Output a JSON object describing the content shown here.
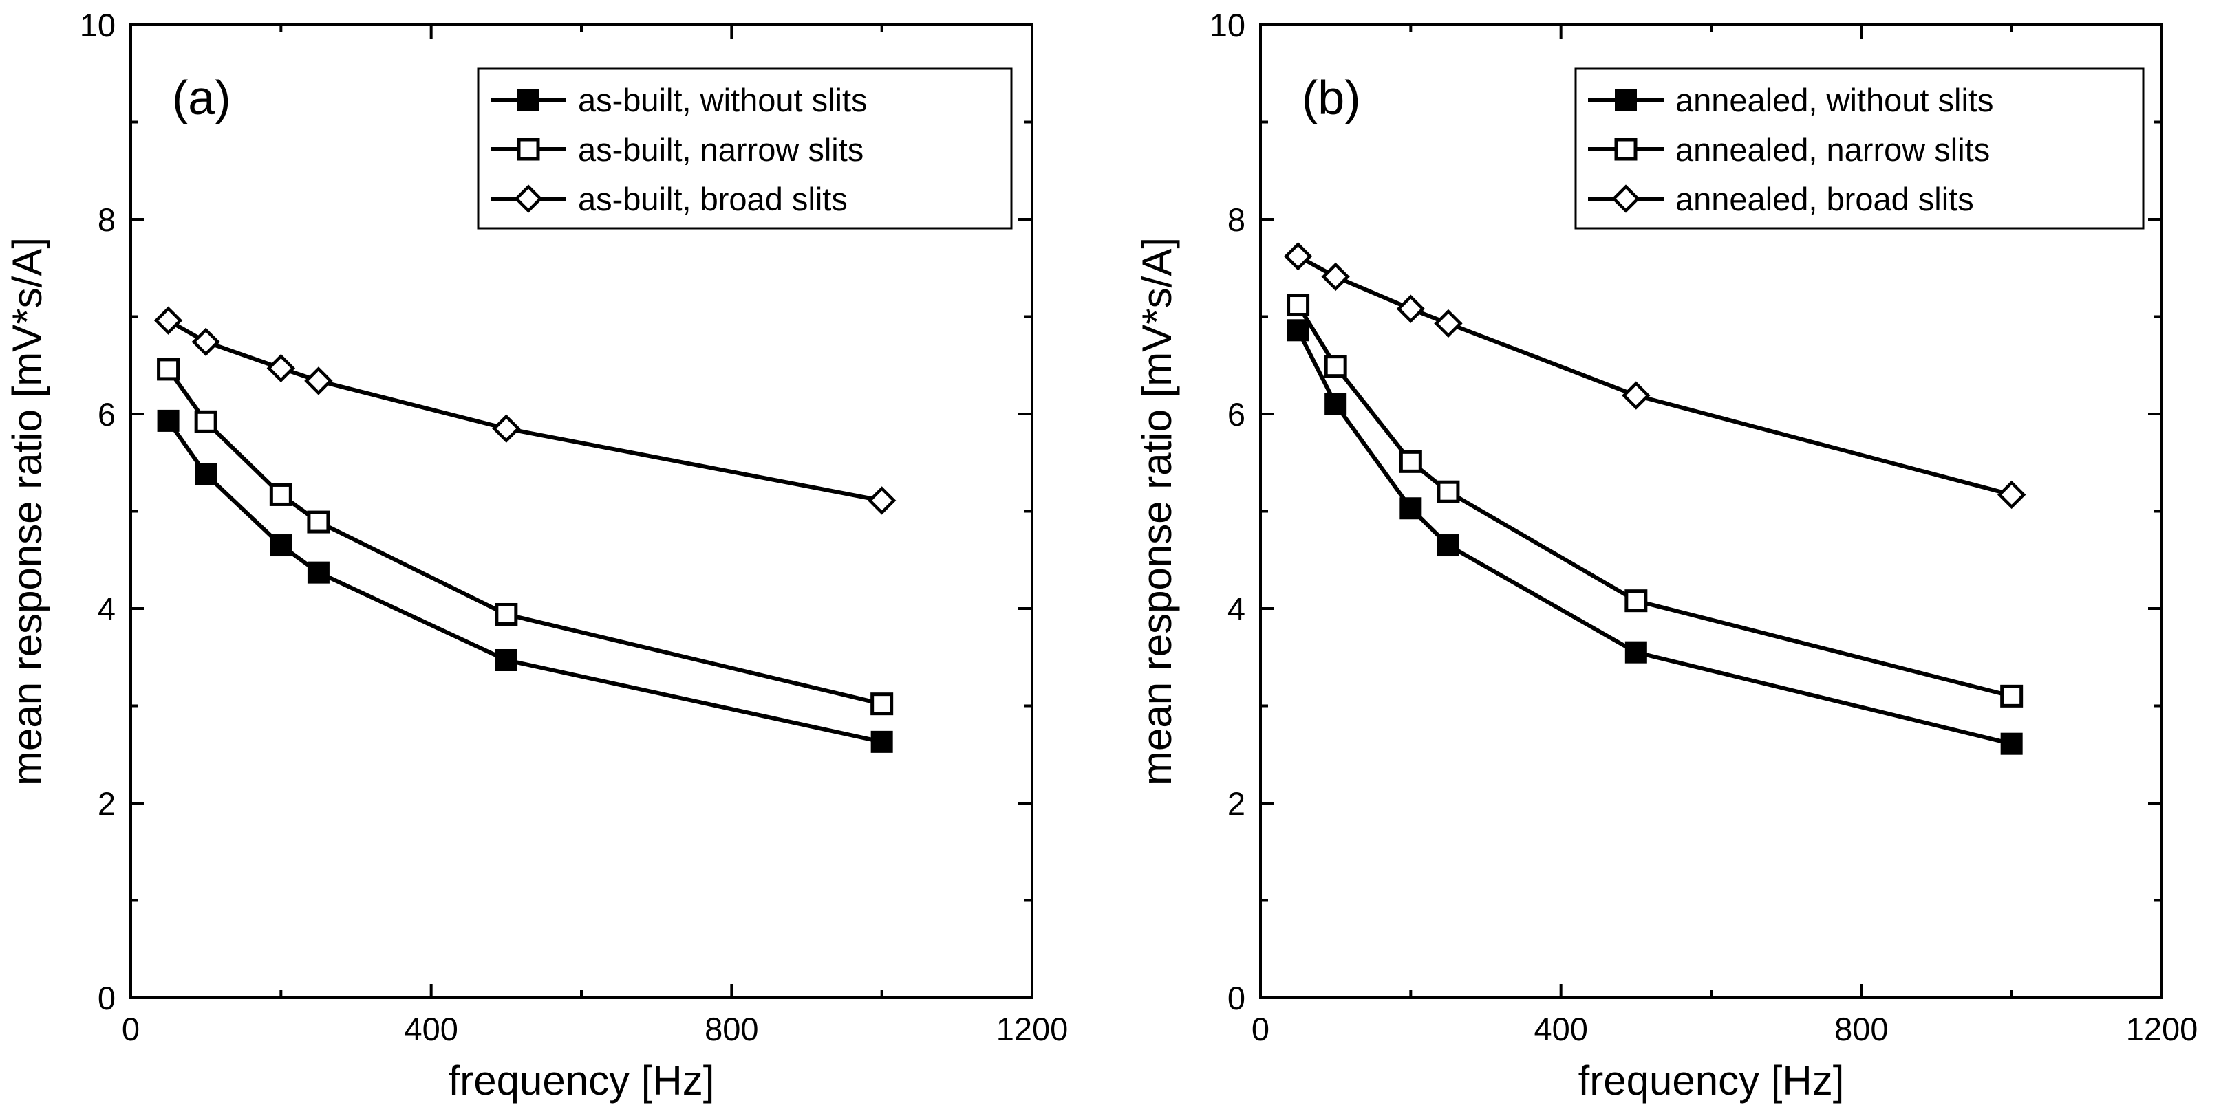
{
  "chart_data": [
    {
      "type": "line",
      "panel_label": "(a)",
      "xlabel": "frequency [Hz]",
      "ylabel": "mean response ratio [mV*s/A]",
      "xlim": [
        0,
        1200
      ],
      "ylim": [
        0,
        10
      ],
      "xticks": [
        "0",
        "400",
        "800",
        "1200"
      ],
      "yticks": [
        "0",
        "2",
        "4",
        "6",
        "8",
        "10"
      ],
      "grid": false,
      "legend_position": "top-right",
      "x": [
        50,
        100,
        200,
        250,
        500,
        1000
      ],
      "series": [
        {
          "name": "as-built, without slits",
          "marker": "filled-square",
          "values": [
            5.93,
            5.38,
            4.65,
            4.37,
            3.47,
            2.63
          ]
        },
        {
          "name": "as-built, narrow slits",
          "marker": "open-square",
          "values": [
            6.46,
            5.92,
            5.17,
            4.89,
            3.94,
            3.02
          ]
        },
        {
          "name": "as-built, broad slits",
          "marker": "open-diamond",
          "values": [
            6.96,
            6.74,
            6.47,
            6.34,
            5.85,
            5.11
          ]
        }
      ]
    },
    {
      "type": "line",
      "panel_label": "(b)",
      "xlabel": "frequency [Hz]",
      "ylabel": "mean response ratio [mV*s/A]",
      "xlim": [
        0,
        1200
      ],
      "ylim": [
        0,
        10
      ],
      "xticks": [
        "0",
        "400",
        "800",
        "1200"
      ],
      "yticks": [
        "0",
        "2",
        "4",
        "6",
        "8",
        "10"
      ],
      "grid": false,
      "legend_position": "top-right",
      "x": [
        50,
        100,
        200,
        250,
        500,
        1000
      ],
      "series": [
        {
          "name": "annealed, without slits",
          "marker": "filled-square",
          "values": [
            6.86,
            6.1,
            5.03,
            4.65,
            3.55,
            2.61
          ]
        },
        {
          "name": "annealed, narrow slits",
          "marker": "open-square",
          "values": [
            7.12,
            6.49,
            5.51,
            5.2,
            4.08,
            3.1
          ]
        },
        {
          "name": "annealed, broad slits",
          "marker": "open-diamond",
          "values": [
            7.62,
            7.41,
            7.08,
            6.93,
            6.19,
            5.17
          ]
        }
      ]
    }
  ]
}
